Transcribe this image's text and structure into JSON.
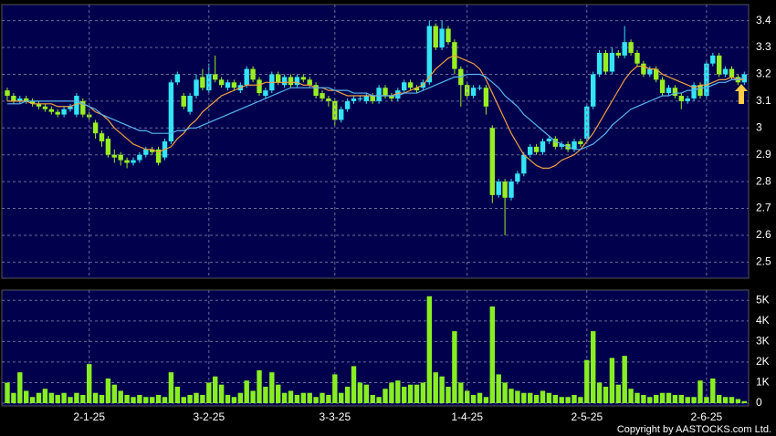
{
  "chart_data": [
    {
      "type": "candlestick",
      "ylim": [
        2.44,
        3.46
      ],
      "yticks": [
        2.5,
        2.6,
        2.7,
        2.8,
        2.9,
        3,
        3.1,
        3.2,
        3.3,
        3.4
      ],
      "grid": true,
      "up_color": "#33e4f4",
      "down_color": "#99ee22",
      "open": [
        3.14,
        3.12,
        3.1,
        3.11,
        3.1,
        3.09,
        3.08,
        3.07,
        3.06,
        3.05,
        3.07,
        3.05,
        3.1,
        3.05,
        3.02,
        2.98,
        2.96,
        2.9,
        2.9,
        2.88,
        2.87,
        2.88,
        2.9,
        2.92,
        2.92,
        2.89,
        2.95,
        3.17,
        3.12,
        3.06,
        3.12,
        3.19,
        3.14,
        3.2,
        3.18,
        3.15,
        3.17,
        3.14,
        3.16,
        3.22,
        3.18,
        3.12,
        3.14,
        3.2,
        3.16,
        3.19,
        3.16,
        3.19,
        3.18,
        3.16,
        3.13,
        3.11,
        3.1,
        3.03,
        3.07,
        3.1,
        3.11,
        3.1,
        3.12,
        3.1,
        3.15,
        3.12,
        3.11,
        3.14,
        3.17,
        3.15,
        3.15,
        3.17,
        3.38,
        3.3,
        3.37,
        3.32,
        3.22,
        3.16,
        3.12,
        3.15,
        3.15,
        3.0,
        2.75,
        2.8,
        2.74,
        2.8,
        2.83,
        2.9,
        2.93,
        2.91,
        2.95,
        2.96,
        2.93,
        2.94,
        2.92,
        2.95,
        2.96,
        3.08,
        3.2,
        3.28,
        3.21,
        3.28,
        3.27,
        3.32,
        3.28,
        3.24,
        3.2,
        3.22,
        3.18,
        3.13,
        3.15,
        3.12,
        3.1,
        3.11,
        3.16,
        3.12,
        3.24,
        3.27,
        3.2,
        3.22,
        3.19,
        3.17
      ],
      "high": [
        3.15,
        3.13,
        3.12,
        3.12,
        3.11,
        3.1,
        3.09,
        3.08,
        3.07,
        3.08,
        3.09,
        3.13,
        3.11,
        3.06,
        3.03,
        2.99,
        2.97,
        2.92,
        2.91,
        2.89,
        2.89,
        2.91,
        2.93,
        2.93,
        2.93,
        2.96,
        3.18,
        3.21,
        3.13,
        3.13,
        3.2,
        3.22,
        3.24,
        3.27,
        3.19,
        3.18,
        3.18,
        3.17,
        3.23,
        3.23,
        3.19,
        3.15,
        3.21,
        3.21,
        3.2,
        3.2,
        3.2,
        3.2,
        3.19,
        3.17,
        3.14,
        3.12,
        3.11,
        3.08,
        3.11,
        3.12,
        3.12,
        3.13,
        3.13,
        3.16,
        3.16,
        3.13,
        3.15,
        3.18,
        3.18,
        3.16,
        3.18,
        3.4,
        3.39,
        3.4,
        3.38,
        3.33,
        3.23,
        3.17,
        3.16,
        3.16,
        3.16,
        3.01,
        2.81,
        2.81,
        2.81,
        2.84,
        2.91,
        2.94,
        2.94,
        2.96,
        2.97,
        2.97,
        2.95,
        2.95,
        2.96,
        2.96,
        3.09,
        3.21,
        3.29,
        3.29,
        3.3,
        3.29,
        3.38,
        3.33,
        3.29,
        3.25,
        3.23,
        3.23,
        3.19,
        3.16,
        3.16,
        3.13,
        3.12,
        3.17,
        3.17,
        3.25,
        3.28,
        3.28,
        3.23,
        3.23,
        3.2,
        3.21
      ],
      "low": [
        3.1,
        3.09,
        3.09,
        3.09,
        3.08,
        3.07,
        3.06,
        3.05,
        3.04,
        3.04,
        3.06,
        3.04,
        3.04,
        3.03,
        2.96,
        2.93,
        2.89,
        2.87,
        2.86,
        2.85,
        2.86,
        2.87,
        2.89,
        2.9,
        2.86,
        2.88,
        2.94,
        3.16,
        3.07,
        3.05,
        3.11,
        3.14,
        3.13,
        3.17,
        3.15,
        3.14,
        3.14,
        3.13,
        3.15,
        3.17,
        3.12,
        3.11,
        3.13,
        3.16,
        3.15,
        3.15,
        3.15,
        3.17,
        3.15,
        3.11,
        3.1,
        3.08,
        3.01,
        3.02,
        3.06,
        3.09,
        3.1,
        3.09,
        3.09,
        3.09,
        3.11,
        3.1,
        3.1,
        3.13,
        3.14,
        3.13,
        3.14,
        3.16,
        3.29,
        3.29,
        3.31,
        3.2,
        3.08,
        3.11,
        3.11,
        3.14,
        3.05,
        2.72,
        2.74,
        2.6,
        2.73,
        2.79,
        2.82,
        2.89,
        2.9,
        2.9,
        2.94,
        2.92,
        2.92,
        2.91,
        2.91,
        2.93,
        2.95,
        3.07,
        3.19,
        3.2,
        3.2,
        3.26,
        3.26,
        3.27,
        3.23,
        3.19,
        3.19,
        3.17,
        3.12,
        3.12,
        3.11,
        3.07,
        3.09,
        3.1,
        3.11,
        3.11,
        3.23,
        3.19,
        3.19,
        3.18,
        3.16,
        3.16
      ],
      "close": [
        3.12,
        3.1,
        3.11,
        3.1,
        3.09,
        3.08,
        3.07,
        3.06,
        3.05,
        3.07,
        3.08,
        3.12,
        3.05,
        3.04,
        2.98,
        2.95,
        2.9,
        2.89,
        2.88,
        2.87,
        2.88,
        2.9,
        2.92,
        2.91,
        2.87,
        2.95,
        3.17,
        3.2,
        3.08,
        3.12,
        3.18,
        3.15,
        3.2,
        3.18,
        3.16,
        3.17,
        3.15,
        3.16,
        3.22,
        3.18,
        3.13,
        3.14,
        3.2,
        3.17,
        3.19,
        3.16,
        3.19,
        3.18,
        3.16,
        3.12,
        3.11,
        3.1,
        3.03,
        3.07,
        3.1,
        3.11,
        3.11,
        3.12,
        3.1,
        3.15,
        3.12,
        3.11,
        3.14,
        3.17,
        3.15,
        3.14,
        3.17,
        3.38,
        3.3,
        3.37,
        3.32,
        3.22,
        3.16,
        3.12,
        3.15,
        3.15,
        3.08,
        2.75,
        2.8,
        2.74,
        2.8,
        2.83,
        2.9,
        2.93,
        2.91,
        2.95,
        2.96,
        2.93,
        2.94,
        2.92,
        2.95,
        2.94,
        3.08,
        3.2,
        3.28,
        3.21,
        3.28,
        3.27,
        3.32,
        3.28,
        3.24,
        3.2,
        3.22,
        3.18,
        3.13,
        3.15,
        3.12,
        3.1,
        3.11,
        3.16,
        3.12,
        3.24,
        3.27,
        3.2,
        3.22,
        3.19,
        3.17,
        3.2
      ],
      "lines": [
        {
          "color": "#f0a040",
          "values": [
            3.1,
            3.1,
            3.1,
            3.1,
            3.09,
            3.09,
            3.09,
            3.09,
            3.08,
            3.08,
            3.08,
            3.09,
            3.09,
            3.08,
            3.06,
            3.05,
            3.03,
            3.0,
            2.98,
            2.96,
            2.94,
            2.93,
            2.92,
            2.92,
            2.91,
            2.92,
            2.93,
            2.96,
            2.98,
            3.01,
            3.03,
            3.06,
            3.08,
            3.1,
            3.12,
            3.13,
            3.14,
            3.15,
            3.16,
            3.16,
            3.16,
            3.17,
            3.17,
            3.17,
            3.17,
            3.17,
            3.17,
            3.16,
            3.16,
            3.15,
            3.15,
            3.14,
            3.14,
            3.13,
            3.12,
            3.12,
            3.12,
            3.12,
            3.12,
            3.12,
            3.12,
            3.12,
            3.13,
            3.13,
            3.14,
            3.15,
            3.16,
            3.19,
            3.22,
            3.24,
            3.26,
            3.27,
            3.26,
            3.25,
            3.24,
            3.22,
            3.18,
            3.13,
            3.08,
            3.03,
            2.98,
            2.94,
            2.9,
            2.88,
            2.86,
            2.85,
            2.85,
            2.86,
            2.88,
            2.89,
            2.9,
            2.92,
            2.95,
            2.98,
            3.02,
            3.06,
            3.1,
            3.14,
            3.18,
            3.21,
            3.23,
            3.23,
            3.22,
            3.22,
            3.2,
            3.19,
            3.18,
            3.17,
            3.16,
            3.15,
            3.16,
            3.16,
            3.17,
            3.18,
            3.18,
            3.19,
            3.18,
            3.18
          ]
        },
        {
          "color": "#5ab4f0",
          "values": [
            3.09,
            3.09,
            3.09,
            3.1,
            3.1,
            3.1,
            3.1,
            3.1,
            3.1,
            3.1,
            3.1,
            3.1,
            3.09,
            3.08,
            3.07,
            3.05,
            3.04,
            3.03,
            3.02,
            3.01,
            3.0,
            2.99,
            2.99,
            2.98,
            2.98,
            2.98,
            2.98,
            2.99,
            2.99,
            3.0,
            3.0,
            3.01,
            3.02,
            3.03,
            3.04,
            3.05,
            3.06,
            3.07,
            3.08,
            3.09,
            3.1,
            3.11,
            3.12,
            3.13,
            3.14,
            3.15,
            3.15,
            3.15,
            3.15,
            3.15,
            3.15,
            3.15,
            3.14,
            3.14,
            3.14,
            3.13,
            3.13,
            3.13,
            3.12,
            3.12,
            3.12,
            3.12,
            3.12,
            3.13,
            3.13,
            3.13,
            3.14,
            3.15,
            3.16,
            3.17,
            3.18,
            3.19,
            3.19,
            3.2,
            3.2,
            3.2,
            3.19,
            3.17,
            3.15,
            3.12,
            3.1,
            3.08,
            3.05,
            3.03,
            3.01,
            2.99,
            2.97,
            2.95,
            2.94,
            2.93,
            2.92,
            2.92,
            2.93,
            2.94,
            2.96,
            2.98,
            3.01,
            3.03,
            3.05,
            3.07,
            3.08,
            3.09,
            3.1,
            3.11,
            3.12,
            3.12,
            3.13,
            3.13,
            3.14,
            3.14,
            3.15,
            3.15,
            3.16,
            3.17,
            3.17,
            3.18,
            3.18,
            3.19
          ]
        }
      ]
    },
    {
      "type": "bar",
      "ylim": [
        0,
        5500
      ],
      "yticks": [
        0,
        {
          "value": 1000,
          "label": "1K"
        },
        {
          "value": 2000,
          "label": "2K"
        },
        {
          "value": 3000,
          "label": "3K"
        },
        {
          "value": 4000,
          "label": "4K"
        },
        {
          "value": 5000,
          "label": "5K"
        }
      ],
      "grid": true,
      "color": "#88ee22",
      "categories": [
        null,
        null,
        null,
        null,
        null,
        null,
        null,
        null,
        null,
        null,
        null,
        null,
        null,
        "2-1-25",
        null,
        null,
        null,
        null,
        null,
        null,
        null,
        null,
        null,
        null,
        null,
        null,
        null,
        null,
        null,
        null,
        null,
        null,
        "3-2-25",
        null,
        null,
        null,
        null,
        null,
        null,
        null,
        null,
        null,
        null,
        null,
        null,
        null,
        null,
        null,
        null,
        null,
        null,
        null,
        "3-3-25",
        null,
        null,
        null,
        null,
        null,
        null,
        null,
        null,
        null,
        null,
        null,
        null,
        null,
        null,
        null,
        null,
        null,
        null,
        null,
        null,
        "1-4-25",
        null,
        null,
        null,
        null,
        null,
        null,
        null,
        null,
        null,
        null,
        null,
        null,
        null,
        null,
        null,
        null,
        null,
        null,
        "2-5-25",
        null,
        null,
        null,
        null,
        null,
        null,
        null,
        null,
        null,
        null,
        null,
        null,
        null,
        null,
        null,
        null,
        null,
        null,
        "2-6-25",
        null,
        null,
        null,
        null,
        null,
        null
      ],
      "values": [
        1000,
        500,
        1500,
        600,
        300,
        500,
        700,
        500,
        400,
        500,
        300,
        500,
        400,
        1900,
        500,
        400,
        1200,
        900,
        600,
        400,
        300,
        400,
        300,
        300,
        400,
        300,
        1500,
        800,
        300,
        400,
        500,
        400,
        1000,
        1300,
        900,
        400,
        300,
        500,
        1100,
        600,
        1600,
        800,
        1500,
        900,
        500,
        600,
        400,
        500,
        500,
        300,
        500,
        400,
        1400,
        500,
        800,
        1800,
        1000,
        900,
        400,
        300,
        700,
        1000,
        1100,
        800,
        900,
        900,
        1000,
        5200,
        1500,
        1300,
        800,
        3500,
        1000,
        600,
        400,
        500,
        300,
        4700,
        1400,
        1000,
        700,
        600,
        500,
        500,
        400,
        600,
        500,
        400,
        300,
        300,
        400,
        300,
        2100,
        3500,
        1000,
        800,
        2200,
        900,
        2300,
        700,
        500,
        400,
        300,
        400,
        500,
        500,
        400,
        400,
        300,
        300,
        1100,
        300,
        1200,
        400,
        300,
        300,
        200,
        100
      ]
    }
  ],
  "source": "Copyright by AASTOCKS.com Ltd."
}
